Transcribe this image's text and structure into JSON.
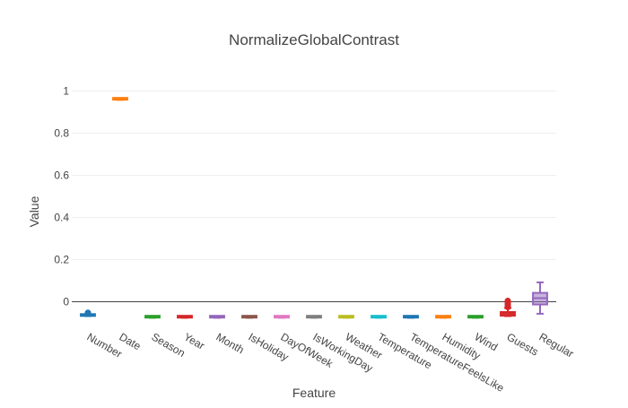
{
  "chart_data": {
    "type": "box",
    "title": "NormalizeGlobalContrast",
    "xlabel": "Feature",
    "ylabel": "Value",
    "ylim": [
      -0.1,
      1.07
    ],
    "yticks": [
      0,
      0.2,
      0.4,
      0.6,
      0.8,
      1
    ],
    "ytick_labels": [
      "0",
      "0.2",
      "0.4",
      "0.6",
      "0.8",
      "1"
    ],
    "grid": true,
    "zero_line": true,
    "legend": "none",
    "series": [
      {
        "name": "Number",
        "color": "#1f77b4",
        "min": -0.068,
        "q1": -0.067,
        "median": -0.065,
        "q3": -0.063,
        "max": -0.062,
        "outliers": [
          -0.055,
          -0.052
        ]
      },
      {
        "name": "Date",
        "color": "#ff7f0e",
        "min": 0.958,
        "q1": 0.959,
        "median": 0.961,
        "q3": 0.963,
        "max": 0.964,
        "outliers": []
      },
      {
        "name": "Season",
        "color": "#2ca02c",
        "min": -0.076,
        "q1": -0.075,
        "median": -0.073,
        "q3": -0.071,
        "max": -0.07,
        "outliers": []
      },
      {
        "name": "Year",
        "color": "#d62728",
        "min": -0.076,
        "q1": -0.075,
        "median": -0.073,
        "q3": -0.071,
        "max": -0.07,
        "outliers": []
      },
      {
        "name": "Month",
        "color": "#9467bd",
        "min": -0.076,
        "q1": -0.075,
        "median": -0.073,
        "q3": -0.071,
        "max": -0.07,
        "outliers": []
      },
      {
        "name": "IsHoliday",
        "color": "#8c564b",
        "min": -0.076,
        "q1": -0.075,
        "median": -0.073,
        "q3": -0.071,
        "max": -0.07,
        "outliers": []
      },
      {
        "name": "DayOfWeek",
        "color": "#e377c2",
        "min": -0.076,
        "q1": -0.075,
        "median": -0.073,
        "q3": -0.071,
        "max": -0.07,
        "outliers": []
      },
      {
        "name": "IsWorkingDay",
        "color": "#7f7f7f",
        "min": -0.076,
        "q1": -0.075,
        "median": -0.073,
        "q3": -0.071,
        "max": -0.07,
        "outliers": []
      },
      {
        "name": "Weather",
        "color": "#bcbd22",
        "min": -0.076,
        "q1": -0.075,
        "median": -0.073,
        "q3": -0.071,
        "max": -0.07,
        "outliers": []
      },
      {
        "name": "Temperature",
        "color": "#17becf",
        "min": -0.076,
        "q1": -0.075,
        "median": -0.073,
        "q3": -0.071,
        "max": -0.07,
        "outliers": []
      },
      {
        "name": "TemperatureFeelsLike",
        "color": "#1f77b4",
        "min": -0.076,
        "q1": -0.075,
        "median": -0.073,
        "q3": -0.071,
        "max": -0.07,
        "outliers": []
      },
      {
        "name": "Humidity",
        "color": "#ff7f0e",
        "min": -0.076,
        "q1": -0.075,
        "median": -0.073,
        "q3": -0.071,
        "max": -0.07,
        "outliers": []
      },
      {
        "name": "Wind",
        "color": "#2ca02c",
        "min": -0.076,
        "q1": -0.075,
        "median": -0.073,
        "q3": -0.071,
        "max": -0.07,
        "outliers": []
      },
      {
        "name": "Guests",
        "color": "#d62728",
        "min": -0.068,
        "q1": -0.066,
        "median": -0.057,
        "q3": -0.049,
        "max": -0.03,
        "outliers": [
          -0.025,
          -0.018,
          -0.012,
          -0.006,
          0.0,
          0.004
        ]
      },
      {
        "name": "Regular",
        "color": "#9467bd",
        "min": -0.057,
        "q1": -0.013,
        "median": 0.017,
        "q3": 0.042,
        "max": 0.092,
        "outliers": []
      }
    ]
  }
}
